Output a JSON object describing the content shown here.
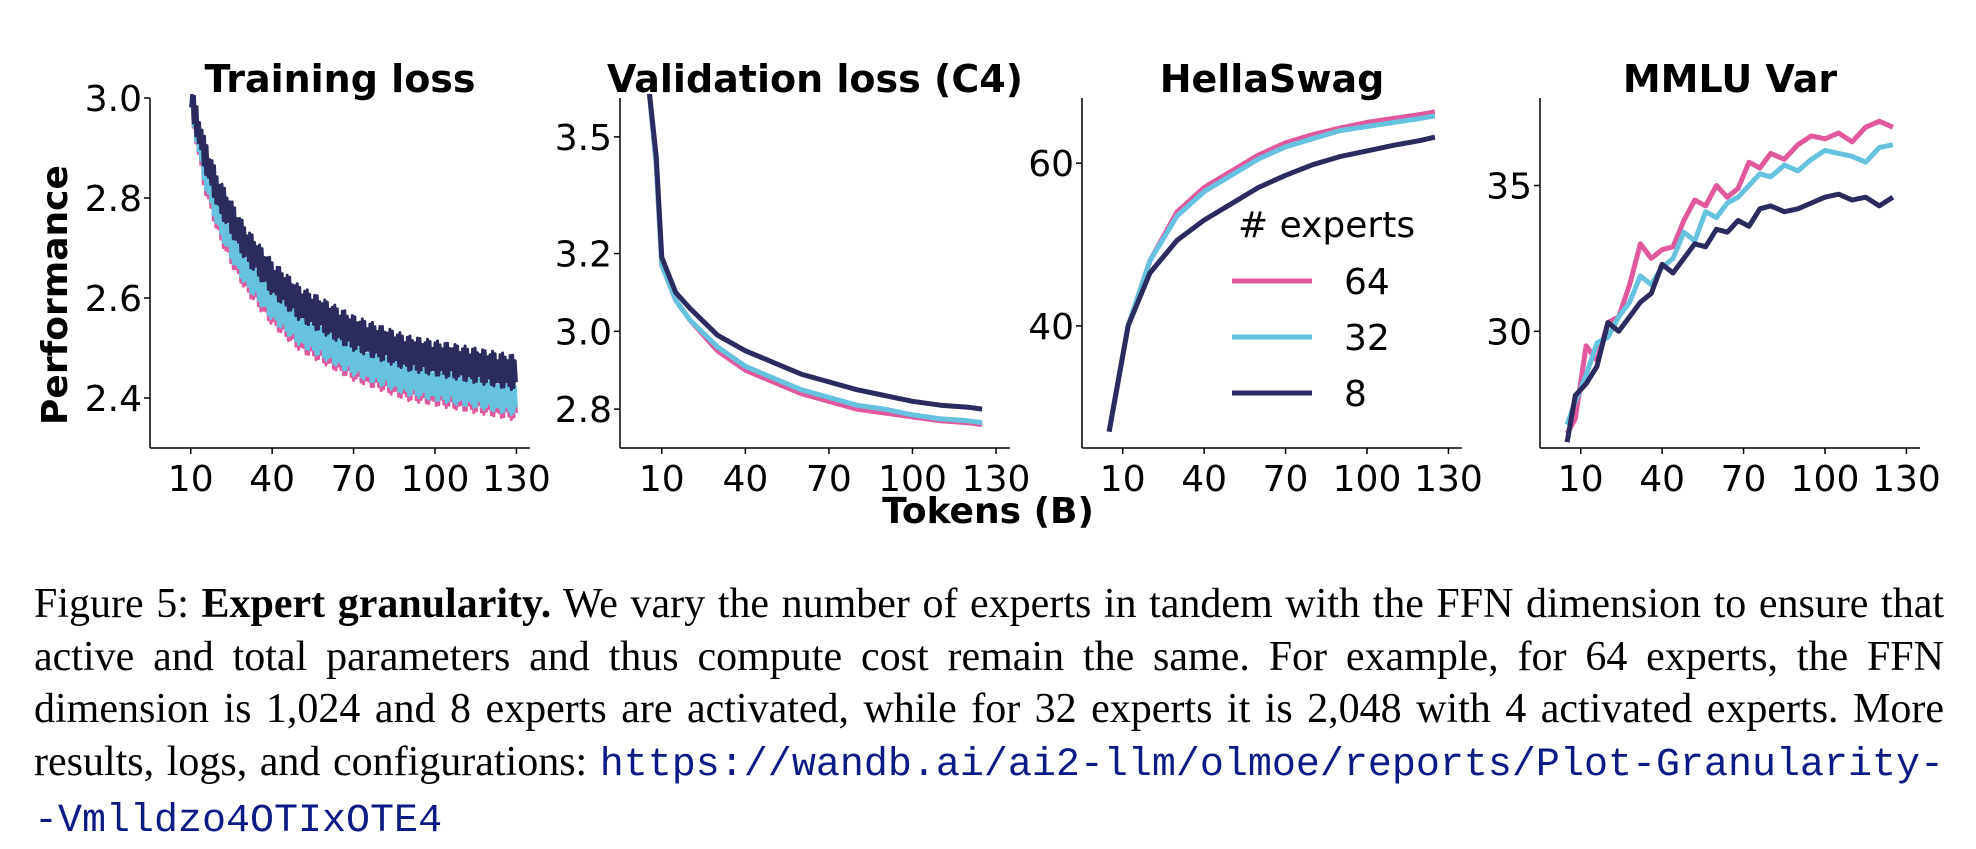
{
  "colors": {
    "e64": "#e0599d",
    "e32": "#66c2df",
    "e8": "#2b2b60"
  },
  "figure": {
    "ylabel": "Performance",
    "xlabel": "Tokens (B)"
  },
  "legend": {
    "title": "# experts",
    "entries": [
      "64",
      "32",
      "8"
    ]
  },
  "caption": {
    "label": "Figure 5:",
    "bold": "Expert granularity.",
    "text": "We vary the number of experts in tandem with the FFN dimension to ensure that active and total parameters and thus compute cost remain the same. For example, for 64 experts, the FFN dimension is 1,024 and 8 experts are activated, while for 32 experts it is 2,048 with 4 activated experts. More results, logs, and configurations:",
    "link": "https://wandb.ai/ai2-llm/olmoe/reports/Plot-Granularity--Vmlldzo4OTIxOTE4"
  },
  "chart_data": [
    {
      "type": "line",
      "title": "Training loss",
      "xlim": [
        -5,
        135
      ],
      "ylim": [
        2.3,
        3.0
      ],
      "xticks": [
        10,
        40,
        70,
        100,
        130
      ],
      "yticks": [
        2.4,
        2.6,
        2.8,
        3.0
      ],
      "ytick_labels": [
        "2.4",
        "2.6",
        "2.8",
        "3.0"
      ],
      "noise_band": 0.035,
      "x": [
        10,
        15,
        20,
        25,
        30,
        40,
        50,
        60,
        70,
        80,
        90,
        100,
        110,
        120,
        130
      ],
      "series": [
        {
          "name": "64",
          "values": [
            3.0,
            2.85,
            2.76,
            2.7,
            2.65,
            2.58,
            2.53,
            2.5,
            2.47,
            2.45,
            2.43,
            2.42,
            2.41,
            2.4,
            2.39
          ]
        },
        {
          "name": "32",
          "values": [
            3.0,
            2.86,
            2.77,
            2.71,
            2.66,
            2.59,
            2.54,
            2.51,
            2.48,
            2.46,
            2.44,
            2.43,
            2.42,
            2.41,
            2.4
          ]
        },
        {
          "name": "8",
          "values": [
            3.0,
            2.89,
            2.81,
            2.76,
            2.71,
            2.64,
            2.59,
            2.56,
            2.53,
            2.51,
            2.49,
            2.48,
            2.47,
            2.46,
            2.45
          ]
        }
      ]
    },
    {
      "type": "line",
      "title": "Validation loss (C4)",
      "xlim": [
        -5,
        135
      ],
      "ylim": [
        2.7,
        3.6
      ],
      "xticks": [
        10,
        40,
        70,
        100,
        130
      ],
      "yticks": [
        2.8,
        3.0,
        3.2,
        3.5
      ],
      "ytick_labels": [
        "2.8",
        "3.0",
        "3.2",
        "3.5"
      ],
      "x": [
        5,
        8,
        10,
        15,
        20,
        30,
        40,
        50,
        60,
        70,
        80,
        90,
        100,
        110,
        120,
        125
      ],
      "series": [
        {
          "name": "64",
          "values": [
            3.65,
            3.43,
            3.17,
            3.08,
            3.03,
            2.95,
            2.9,
            2.87,
            2.84,
            2.82,
            2.8,
            2.79,
            2.78,
            2.77,
            2.765,
            2.76
          ]
        },
        {
          "name": "32",
          "values": [
            3.65,
            3.43,
            3.17,
            3.08,
            3.03,
            2.96,
            2.91,
            2.88,
            2.85,
            2.83,
            2.81,
            2.8,
            2.785,
            2.775,
            2.77,
            2.765
          ]
        },
        {
          "name": "8",
          "values": [
            3.65,
            3.45,
            3.19,
            3.1,
            3.06,
            2.99,
            2.95,
            2.92,
            2.89,
            2.87,
            2.85,
            2.835,
            2.82,
            2.81,
            2.805,
            2.8
          ]
        }
      ]
    },
    {
      "type": "line",
      "title": "HellaSwag",
      "xlim": [
        -5,
        135
      ],
      "ylim": [
        25,
        68
      ],
      "xticks": [
        10,
        40,
        70,
        100,
        130
      ],
      "yticks": [
        40,
        60
      ],
      "ytick_labels": [
        "40",
        "60"
      ],
      "x": [
        5,
        12,
        20,
        30,
        40,
        50,
        60,
        70,
        80,
        90,
        100,
        110,
        120,
        125
      ],
      "series": [
        {
          "name": "64",
          "values": [
            27,
            40,
            48,
            54,
            57,
            59,
            61,
            62.5,
            63.5,
            64.3,
            65,
            65.5,
            66,
            66.3
          ]
        },
        {
          "name": "32",
          "values": [
            27,
            40,
            48,
            53.5,
            56.5,
            58.5,
            60.5,
            62,
            63,
            64,
            64.5,
            65,
            65.5,
            65.8
          ]
        },
        {
          "name": "8",
          "values": [
            27,
            40,
            46.5,
            50.5,
            53,
            55,
            57,
            58.5,
            59.8,
            60.8,
            61.5,
            62.2,
            62.8,
            63.2
          ]
        }
      ]
    },
    {
      "type": "line",
      "title": "MMLU Var",
      "xlim": [
        -5,
        135
      ],
      "ylim": [
        26,
        38
      ],
      "xticks": [
        10,
        40,
        70,
        100,
        130
      ],
      "yticks": [
        30,
        35
      ],
      "ytick_labels": [
        "30",
        "35"
      ],
      "x": [
        5,
        8,
        12,
        16,
        20,
        24,
        28,
        32,
        36,
        40,
        44,
        48,
        52,
        56,
        60,
        64,
        68,
        72,
        76,
        80,
        85,
        90,
        95,
        100,
        105,
        110,
        115,
        120,
        125
      ],
      "series": [
        {
          "name": "64",
          "values": [
            26.5,
            27.0,
            29.5,
            29.0,
            30.3,
            30.5,
            31.6,
            33.0,
            32.5,
            32.8,
            32.9,
            33.8,
            34.5,
            34.3,
            35.0,
            34.6,
            34.9,
            35.8,
            35.6,
            36.1,
            35.9,
            36.4,
            36.7,
            36.6,
            36.8,
            36.5,
            37.0,
            37.2,
            37.0
          ]
        },
        {
          "name": "32",
          "values": [
            26.8,
            27.6,
            28.5,
            29.6,
            29.8,
            30.5,
            31.0,
            31.9,
            31.6,
            32.2,
            32.5,
            33.4,
            33.1,
            34.1,
            33.9,
            34.4,
            34.6,
            35.0,
            35.4,
            35.3,
            35.7,
            35.5,
            35.9,
            36.2,
            36.1,
            36.0,
            35.8,
            36.3,
            36.4
          ]
        },
        {
          "name": "8",
          "values": [
            26.2,
            27.8,
            28.2,
            28.8,
            30.3,
            30.0,
            30.5,
            31.0,
            31.3,
            32.3,
            32.0,
            32.5,
            33.0,
            32.9,
            33.5,
            33.4,
            33.8,
            33.6,
            34.2,
            34.3,
            34.1,
            34.2,
            34.4,
            34.6,
            34.7,
            34.5,
            34.6,
            34.3,
            34.6
          ]
        }
      ]
    }
  ]
}
